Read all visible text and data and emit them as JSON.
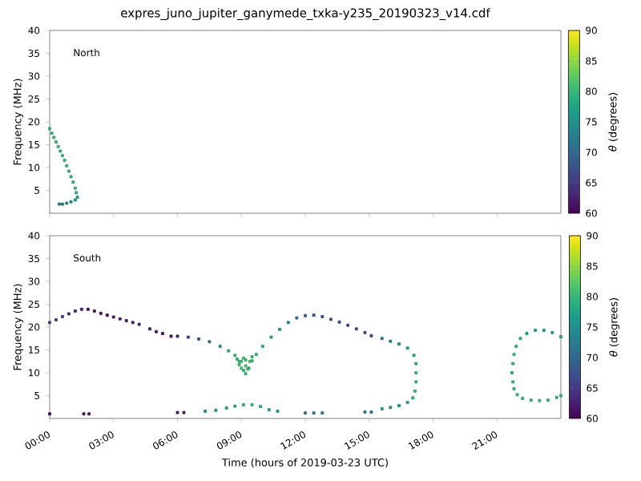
{
  "chart_data": [
    {
      "type": "scatter",
      "title": "expres_juno_jupiter_ganymede_txka-y235_20190323_v14.cdf",
      "ylabel": "Frequency (MHz)",
      "clabel": "*θ* (degrees)",
      "annotations": [
        "North"
      ],
      "marker": "square",
      "tick_labels": "y",
      "xlim": [
        0,
        24
      ],
      "ylim": [
        0,
        40
      ],
      "xticks": [
        {
          "value": 0,
          "label": null
        },
        {
          "value": 3,
          "label": null
        },
        {
          "value": 6,
          "label": null
        },
        {
          "value": 9,
          "label": null
        },
        {
          "value": 12,
          "label": null
        },
        {
          "value": 15,
          "label": null
        },
        {
          "value": 18,
          "label": null
        },
        {
          "value": 21,
          "label": null
        }
      ],
      "yticks": [
        5,
        10,
        15,
        20,
        25,
        30,
        35,
        40
      ],
      "clim": [
        60,
        90
      ],
      "cticks": [
        60,
        65,
        70,
        75,
        80,
        85,
        90
      ],
      "x": [
        0.0,
        0.1,
        0.2,
        0.3,
        0.4,
        0.5,
        0.6,
        0.7,
        0.8,
        0.9,
        1.0,
        1.1,
        1.2,
        1.25,
        1.3,
        1.2,
        1.0,
        0.8,
        0.6,
        0.45
      ],
      "values": [
        18.5,
        17.5,
        16.6,
        15.6,
        14.6,
        13.6,
        12.6,
        11.6,
        10.4,
        9.2,
        8.0,
        6.8,
        5.5,
        4.5,
        3.5,
        2.9,
        2.5,
        2.2,
        2.0,
        2.0
      ],
      "cvalues": [
        80,
        80,
        80,
        80,
        80,
        80,
        80,
        80,
        80,
        80,
        80,
        80,
        80,
        79,
        78,
        76,
        75,
        74,
        74,
        74
      ]
    },
    {
      "type": "scatter",
      "xlabel": "Time (hours of 2019-03-23 UTC)",
      "ylabel": "Frequency (MHz)",
      "clabel": "*θ* (degrees)",
      "annotations": [
        "South"
      ],
      "marker": "square",
      "xlim": [
        0,
        24
      ],
      "ylim": [
        0,
        40
      ],
      "xticks": [
        {
          "value": 0,
          "label": "00:00"
        },
        {
          "value": 3,
          "label": "03:00"
        },
        {
          "value": 6,
          "label": "06:00"
        },
        {
          "value": 9,
          "label": "09:00"
        },
        {
          "value": 12,
          "label": "12:00"
        },
        {
          "value": 15,
          "label": "15:00"
        },
        {
          "value": 18,
          "label": "18:00"
        },
        {
          "value": 21,
          "label": "21:00"
        }
      ],
      "yticks": [
        5,
        10,
        15,
        20,
        25,
        30,
        35,
        40
      ],
      "clim": [
        60,
        90
      ],
      "cticks": [
        60,
        65,
        70,
        75,
        80,
        85,
        90
      ],
      "x": [
        0.0,
        0.3,
        0.6,
        0.9,
        1.2,
        1.5,
        1.8,
        2.1,
        2.4,
        2.7,
        3.0,
        3.3,
        3.6,
        3.9,
        4.2,
        4.7,
        5.0,
        5.3,
        5.7,
        6.0,
        6.5,
        7.0,
        7.5,
        8.0,
        8.4,
        8.7,
        8.9,
        9.1,
        9.2,
        9.35,
        9.5,
        9.7,
        10.0,
        10.4,
        10.8,
        11.2,
        11.6,
        12.0,
        12.4,
        12.8,
        13.2,
        13.6,
        14.0,
        14.4,
        14.8,
        15.1,
        15.6,
        16.0,
        16.4,
        16.8,
        17.1,
        17.2,
        17.2,
        17.2,
        17.15,
        17.05,
        16.8,
        16.4,
        16.0,
        15.6,
        8.9,
        9.0,
        9.0,
        9.2,
        9.2,
        9.4,
        9.3,
        9.1,
        8.8,
        9.5,
        0.0,
        1.6,
        1.85,
        6.0,
        6.3,
        7.3,
        7.8,
        8.3,
        8.7,
        9.1,
        9.5,
        9.9,
        10.3,
        10.7,
        12.0,
        12.4,
        12.8,
        14.8,
        15.1,
        24.0,
        23.6,
        23.2,
        22.8,
        22.4,
        22.1,
        21.9,
        21.8,
        21.75,
        21.7,
        21.75,
        21.8,
        21.95,
        22.2,
        22.6,
        23.0,
        23.4,
        23.8,
        24.0
      ],
      "values": [
        21.0,
        21.6,
        22.3,
        22.9,
        23.5,
        23.9,
        23.9,
        23.5,
        23.0,
        22.6,
        22.2,
        21.8,
        21.4,
        21.0,
        20.6,
        19.6,
        19.0,
        18.6,
        18.0,
        18.0,
        17.8,
        17.4,
        16.8,
        15.8,
        14.8,
        13.8,
        12.5,
        10.5,
        9.8,
        11.0,
        12.6,
        14.0,
        15.8,
        17.8,
        19.5,
        21.0,
        22.0,
        22.5,
        22.6,
        22.3,
        21.7,
        21.1,
        20.4,
        19.6,
        18.8,
        18.1,
        17.5,
        16.9,
        16.3,
        15.4,
        13.8,
        12.0,
        10.0,
        8.0,
        6.0,
        4.5,
        3.5,
        2.8,
        2.4,
        2.1,
        11.8,
        11.0,
        12.5,
        11.5,
        12.8,
        12.5,
        10.8,
        13.2,
        13.0,
        13.5,
        1.0,
        1.0,
        1.0,
        1.3,
        1.3,
        1.6,
        1.8,
        2.3,
        2.7,
        3.0,
        3.0,
        2.6,
        1.9,
        1.6,
        1.2,
        1.2,
        1.2,
        1.4,
        1.4,
        17.9,
        18.8,
        19.3,
        19.3,
        18.6,
        17.5,
        15.8,
        14.0,
        12.0,
        10.0,
        8.0,
        6.5,
        5.2,
        4.4,
        4.0,
        3.9,
        4.0,
        4.6,
        5.0
      ],
      "cvalues": [
        66,
        65,
        65,
        64,
        63,
        62,
        61,
        61,
        61,
        61,
        62,
        62,
        62,
        62,
        62,
        62,
        61,
        61,
        61,
        62,
        66,
        68,
        72,
        76,
        79,
        80,
        80,
        80,
        80,
        80,
        80,
        80,
        79,
        78,
        76,
        74,
        71,
        69,
        68,
        67,
        67,
        67,
        67,
        66,
        66,
        66,
        72,
        74,
        75,
        77,
        78,
        79,
        80,
        80,
        80,
        79,
        78,
        77,
        76,
        76,
        80,
        81,
        81,
        81,
        81,
        81,
        81,
        81,
        80,
        80,
        61,
        61,
        61,
        62,
        62,
        76,
        77,
        78,
        79,
        80,
        80,
        79,
        78,
        77,
        72,
        72,
        72,
        73,
        73,
        78,
        77,
        77,
        77,
        78,
        79,
        80,
        80,
        80,
        80,
        80,
        80,
        80,
        80,
        80,
        80,
        80,
        80,
        80
      ]
    }
  ]
}
